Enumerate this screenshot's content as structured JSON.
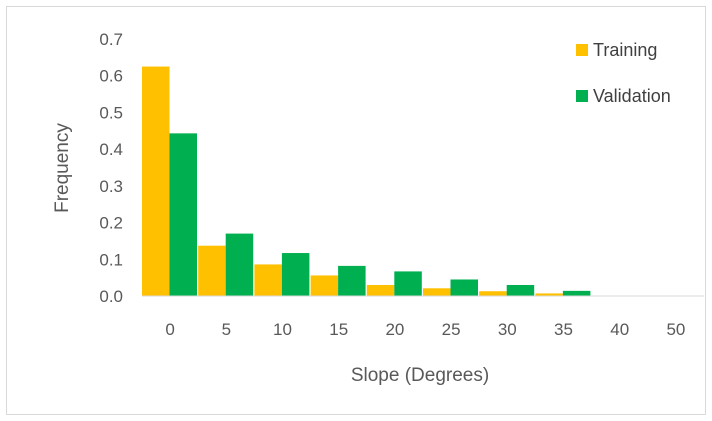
{
  "chart_data": {
    "type": "bar",
    "title": "",
    "xlabel": "Slope (Degrees)",
    "ylabel": "Frequency",
    "categories": [
      "0",
      "5",
      "10",
      "15",
      "20",
      "25",
      "30",
      "35",
      "40",
      "50"
    ],
    "series": [
      {
        "name": "Training",
        "color": "#FFC000",
        "values": [
          0.625,
          0.137,
          0.086,
          0.056,
          0.03,
          0.021,
          0.013,
          0.007,
          0.001,
          0.0
        ]
      },
      {
        "name": "Validation",
        "color": "#00B050",
        "values": [
          0.443,
          0.17,
          0.117,
          0.082,
          0.067,
          0.045,
          0.03,
          0.014,
          0.0,
          0.0
        ]
      }
    ],
    "ylim": [
      0,
      0.7
    ],
    "yticks": [
      "0.0",
      "0.1",
      "0.2",
      "0.3",
      "0.4",
      "0.5",
      "0.6",
      "0.7"
    ],
    "grid": false,
    "legend_position": "top-right"
  }
}
